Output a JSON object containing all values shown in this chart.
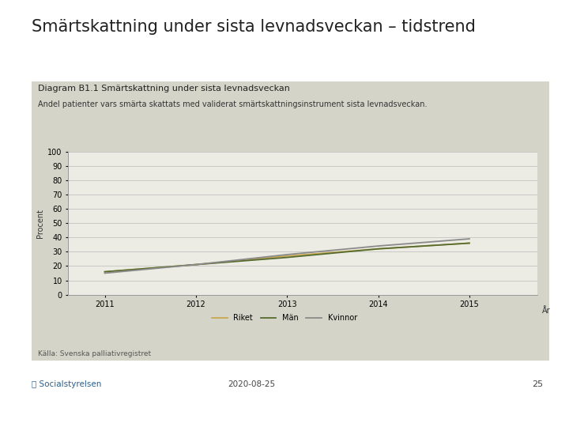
{
  "title": "Smärtskattning under sista levnadsveckan – tidstrend",
  "diagram_title": "Diagram B1.1 Smärtskattning under sista levnadsveckan",
  "subtitle": "Andel patienter vars smärta skattats med validerat smärtskattningsinstrument sista levnadsveckan.",
  "ylabel": "Procent",
  "xlabel": "År",
  "source": "Källa: Svenska palliativregistret",
  "years": [
    2011,
    2012,
    2013,
    2014,
    2015
  ],
  "riket": [
    16,
    21,
    27,
    32,
    36
  ],
  "man": [
    16,
    21,
    26,
    32,
    36
  ],
  "kvinnor": [
    15,
    21,
    28,
    34,
    39
  ],
  "riket_color": "#c8a850",
  "man_color": "#556b2f",
  "kvinnor_color": "#8a8a8a",
  "ylim": [
    0,
    100
  ],
  "yticks": [
    0,
    10,
    20,
    30,
    40,
    50,
    60,
    70,
    80,
    90,
    100
  ],
  "bg_outer": "#ffffff",
  "bg_panel": "#d4d4c8",
  "bg_plot": "#ececE4",
  "footer_date": "2020-08-25",
  "footer_page": "25",
  "title_fontsize": 15,
  "diagram_title_fontsize": 8,
  "subtitle_fontsize": 7,
  "axis_label_fontsize": 7,
  "tick_fontsize": 7,
  "legend_fontsize": 7,
  "source_fontsize": 6.5
}
